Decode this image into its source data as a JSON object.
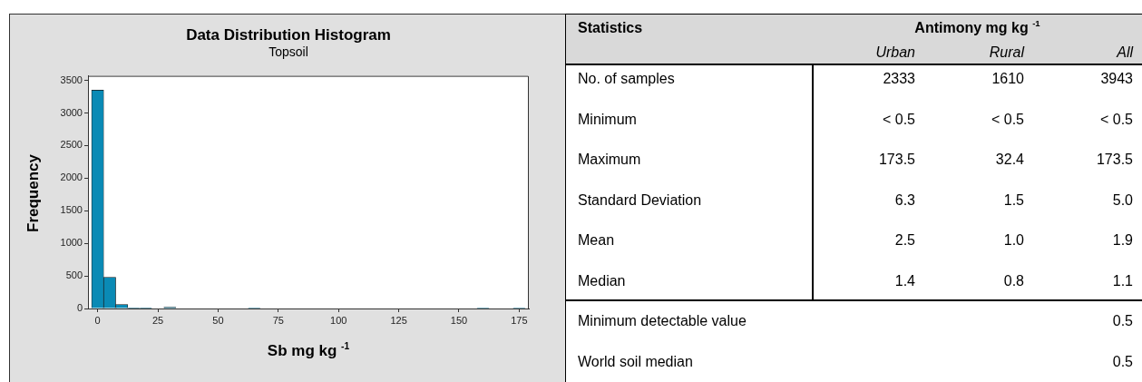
{
  "chart_data": [
    {
      "type": "histogram",
      "title": "Data Distribution Histogram",
      "subtitle": "Topsoil",
      "xlabel": "Sb mg kg $^{-1}$",
      "ylabel": "Frequency",
      "color": "#0a8ab5",
      "bins": [
        -2.5,
        2.5,
        7.5,
        12.5,
        17.5,
        22.5,
        27.5,
        32.5,
        37.5,
        42.5,
        47.5,
        52.5,
        57.5,
        62.5,
        67.5,
        72.5,
        77.5,
        82.5,
        87.5,
        92.5,
        97.5,
        102.5,
        107.5,
        112.5,
        117.5,
        122.5,
        127.5,
        132.5,
        137.5,
        142.5,
        147.5,
        152.5,
        157.5,
        162.5,
        167.5,
        172.5,
        177.5
      ],
      "values": [
        3350,
        480,
        60,
        10,
        10,
        0,
        20,
        0,
        0,
        0,
        0,
        0,
        0,
        1,
        0,
        0,
        0,
        0,
        0,
        0,
        0,
        0,
        0,
        0,
        0,
        0,
        0,
        0,
        0,
        0,
        0,
        0,
        1,
        0,
        0,
        1
      ],
      "xlim": [
        -4,
        179
      ],
      "ylim": [
        0,
        3570
      ],
      "xticks": [
        0,
        25,
        50,
        75,
        100,
        125,
        150,
        175
      ],
      "yticks": [
        0,
        500,
        1000,
        1500,
        2000,
        2500,
        3000,
        3500
      ]
    },
    {
      "type": "other",
      "title": "Antimony mg kg $^{-1}$",
      "ylabel": "Statistics",
      "categories": [
        "Urban",
        "Rural",
        "All"
      ],
      "y_categories": [
        "No. of samples",
        "Minimum",
        "Maximum",
        "Standard Deviation",
        "Mean",
        "Median",
        "Minimum detectable value",
        "World soil median"
      ],
      "cell_labels": [
        [
          "2333",
          "1610",
          "3943"
        ],
        [
          "< 0.5",
          "< 0.5",
          "< 0.5"
        ],
        [
          "173.5",
          "32.4",
          "173.5"
        ],
        [
          "6.3",
          "1.5",
          "5.0"
        ],
        [
          "2.5",
          "1.0",
          "1.9"
        ],
        [
          "1.4",
          "0.8",
          "1.1"
        ],
        [
          null,
          null,
          "0.5"
        ],
        [
          null,
          null,
          "0.5"
        ]
      ]
    }
  ]
}
